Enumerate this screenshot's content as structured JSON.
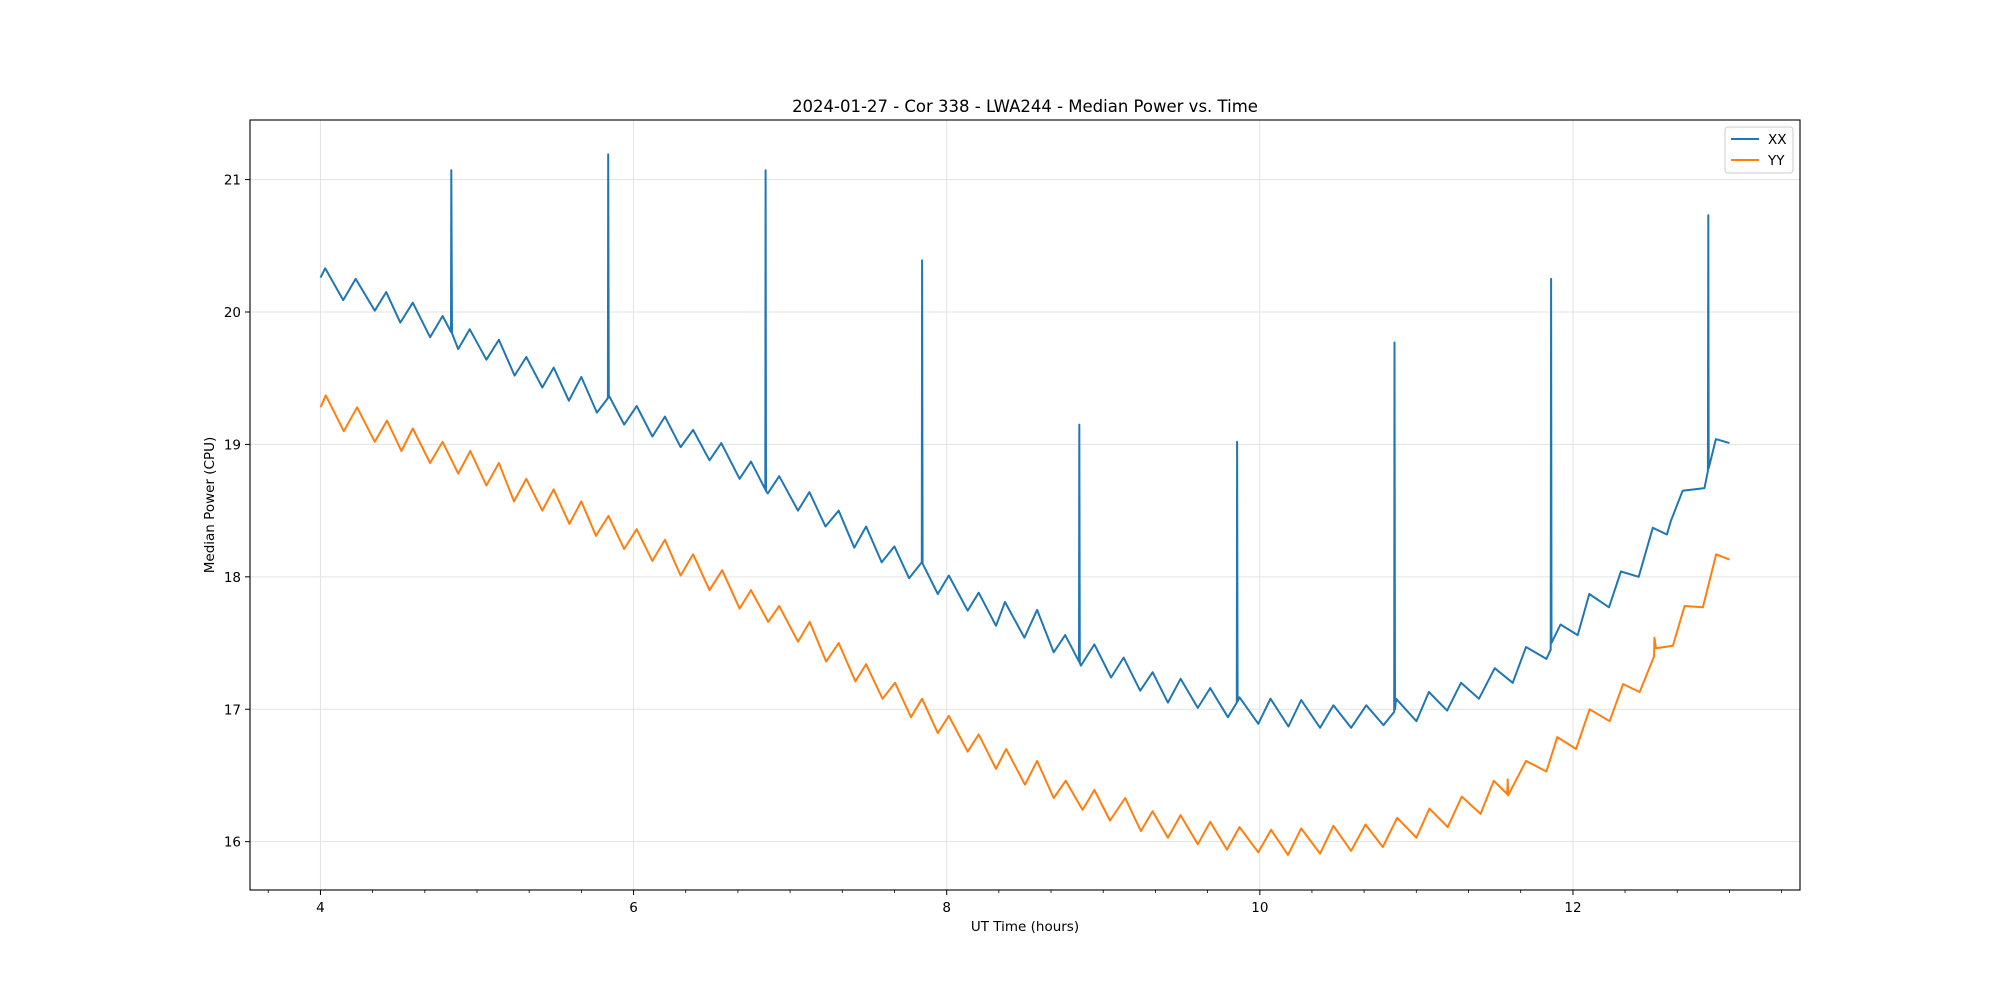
{
  "chart_data": {
    "type": "line",
    "title": "2024-01-27 - Cor 338 - LWA244 - Median Power vs. Time",
    "xlabel": "UT Time (hours)",
    "ylabel": "Median Power (CPU)",
    "xlim": [
      3.55,
      13.45
    ],
    "ylim": [
      15.635,
      21.45
    ],
    "xticks": [
      4,
      6,
      8,
      10,
      12
    ],
    "xtick_labels": [
      "4",
      "6",
      "8",
      "10",
      "12"
    ],
    "x_minor_step": 0.3333,
    "yticks": [
      16,
      17,
      18,
      19,
      20,
      21
    ],
    "ytick_labels": [
      "16",
      "17",
      "18",
      "19",
      "20",
      "21"
    ],
    "grid": true,
    "legend_position": "top-right",
    "series": [
      {
        "name": "XX",
        "color": "#1f77b4",
        "x": [
          4.0,
          4.03,
          4.145,
          4.225,
          4.347,
          4.42,
          4.51,
          4.59,
          4.7,
          4.78,
          4.834,
          4.836,
          4.84,
          4.88,
          4.953,
          5.06,
          5.14,
          5.24,
          5.315,
          5.417,
          5.49,
          5.587,
          5.666,
          5.766,
          5.836,
          5.838,
          5.842,
          5.94,
          6.02,
          6.12,
          6.2,
          6.3,
          6.38,
          6.485,
          6.56,
          6.677,
          6.75,
          6.841,
          6.843,
          6.846,
          6.857,
          6.93,
          7.05,
          7.123,
          7.226,
          7.31,
          7.41,
          7.485,
          7.585,
          7.666,
          7.76,
          7.841,
          7.843,
          7.846,
          7.943,
          8.013,
          8.134,
          8.204,
          8.315,
          8.372,
          8.496,
          8.577,
          8.683,
          8.757,
          8.845,
          8.847,
          8.85,
          8.857,
          8.943,
          9.05,
          9.13,
          9.236,
          9.315,
          9.413,
          9.494,
          9.604,
          9.683,
          9.796,
          9.853,
          9.855,
          9.858,
          9.87,
          9.99,
          10.068,
          10.183,
          10.264,
          10.385,
          10.47,
          10.583,
          10.68,
          10.79,
          10.858,
          10.86,
          10.863,
          10.87,
          11.0,
          11.08,
          11.196,
          11.285,
          11.4,
          11.5,
          11.615,
          11.7,
          11.83,
          11.858,
          11.86,
          11.863,
          11.92,
          12.03,
          12.104,
          12.23,
          12.306,
          12.42,
          12.51,
          12.6,
          12.625,
          12.7,
          12.84,
          12.862,
          12.864,
          12.867,
          12.913,
          13.0
        ],
        "y": [
          20.26,
          20.33,
          20.09,
          20.25,
          20.01,
          20.15,
          19.92,
          20.07,
          19.81,
          19.97,
          19.85,
          21.07,
          19.84,
          19.72,
          19.87,
          19.64,
          19.79,
          19.52,
          19.66,
          19.43,
          19.58,
          19.33,
          19.51,
          19.24,
          19.35,
          21.19,
          19.37,
          19.15,
          19.29,
          19.06,
          19.21,
          18.98,
          19.11,
          18.88,
          19.01,
          18.74,
          18.87,
          18.66,
          21.07,
          18.65,
          18.63,
          18.76,
          18.5,
          18.64,
          18.38,
          18.5,
          18.22,
          18.38,
          18.11,
          18.23,
          17.99,
          18.11,
          20.39,
          18.1,
          17.87,
          18.01,
          17.745,
          17.88,
          17.63,
          17.81,
          17.54,
          17.75,
          17.43,
          17.56,
          17.36,
          19.15,
          17.35,
          17.33,
          17.49,
          17.24,
          17.39,
          17.14,
          17.28,
          17.05,
          17.23,
          17.01,
          17.16,
          16.94,
          17.05,
          19.02,
          17.06,
          17.09,
          16.89,
          17.08,
          16.87,
          17.07,
          16.86,
          17.03,
          16.86,
          17.03,
          16.88,
          16.98,
          19.77,
          17.0,
          17.08,
          16.91,
          17.13,
          16.99,
          17.2,
          17.08,
          17.31,
          17.2,
          17.47,
          17.38,
          17.45,
          20.25,
          17.5,
          17.64,
          17.56,
          17.87,
          17.77,
          18.04,
          18.0,
          18.37,
          18.32,
          18.42,
          18.65,
          18.67,
          18.8,
          20.73,
          18.82,
          19.04,
          19.01
        ]
      },
      {
        "name": "YY",
        "color": "#ff7f0e",
        "x": [
          4.0,
          4.034,
          4.149,
          4.234,
          4.347,
          4.425,
          4.517,
          4.59,
          4.7,
          4.78,
          4.88,
          4.957,
          5.06,
          5.14,
          5.236,
          5.315,
          5.417,
          5.49,
          5.59,
          5.666,
          5.76,
          5.84,
          5.94,
          6.02,
          6.12,
          6.2,
          6.3,
          6.38,
          6.485,
          6.566,
          6.677,
          6.75,
          6.86,
          6.93,
          7.05,
          7.125,
          7.23,
          7.31,
          7.417,
          7.485,
          7.59,
          7.67,
          7.772,
          7.843,
          7.943,
          8.013,
          8.134,
          8.204,
          8.315,
          8.38,
          8.5,
          8.577,
          8.683,
          8.76,
          8.868,
          8.943,
          9.043,
          9.14,
          9.24,
          9.315,
          9.413,
          9.494,
          9.604,
          9.683,
          9.79,
          9.87,
          9.99,
          10.072,
          10.18,
          10.264,
          10.385,
          10.47,
          10.583,
          10.675,
          10.785,
          10.877,
          11.0,
          11.083,
          11.2,
          11.29,
          11.41,
          11.494,
          11.58,
          11.583,
          11.586,
          11.7,
          11.83,
          11.9,
          12.02,
          12.106,
          12.234,
          12.32,
          12.426,
          12.518,
          12.52,
          12.53,
          12.638,
          12.713,
          12.83,
          12.915,
          13.0
        ],
        "y": [
          19.28,
          19.37,
          19.1,
          19.28,
          19.02,
          19.18,
          18.95,
          19.12,
          18.86,
          19.02,
          18.78,
          18.95,
          18.69,
          18.86,
          18.57,
          18.74,
          18.5,
          18.66,
          18.4,
          18.57,
          18.31,
          18.46,
          18.21,
          18.36,
          18.12,
          18.28,
          18.01,
          18.17,
          17.9,
          18.05,
          17.76,
          17.9,
          17.66,
          17.78,
          17.51,
          17.66,
          17.36,
          17.5,
          17.21,
          17.34,
          17.08,
          17.2,
          16.94,
          17.08,
          16.82,
          16.95,
          16.68,
          16.81,
          16.55,
          16.7,
          16.43,
          16.61,
          16.33,
          16.46,
          16.24,
          16.39,
          16.16,
          16.33,
          16.08,
          16.23,
          16.03,
          16.2,
          15.98,
          16.15,
          15.94,
          16.11,
          15.92,
          16.09,
          15.9,
          16.1,
          15.91,
          16.12,
          15.93,
          16.13,
          15.96,
          16.18,
          16.03,
          16.25,
          16.11,
          16.34,
          16.21,
          16.46,
          16.36,
          16.47,
          16.35,
          16.61,
          16.53,
          16.79,
          16.7,
          17.0,
          16.91,
          17.19,
          17.13,
          17.4,
          17.54,
          17.46,
          17.48,
          17.78,
          17.77,
          18.17,
          18.13
        ]
      }
    ]
  }
}
